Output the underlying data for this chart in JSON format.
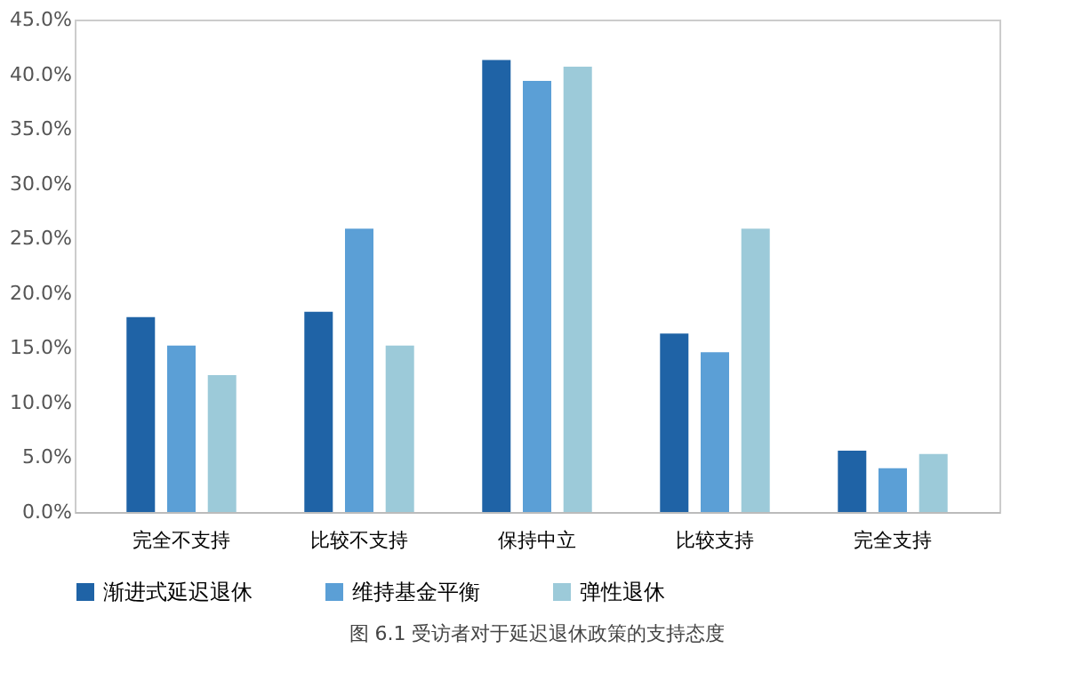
{
  "chart_data": {
    "type": "bar",
    "title": "图 6.1 受访者对于延迟退休政策的支持态度",
    "categories": [
      "完全不支持",
      "比较不支持",
      "保持中立",
      "比较支持",
      "完全支持"
    ],
    "series": [
      {
        "name": "渐进式延迟退休",
        "color": "#1f63a6",
        "values": [
          17.8,
          18.3,
          41.3,
          16.3,
          5.6
        ]
      },
      {
        "name": "维持基金平衡",
        "color": "#5b9fd6",
        "values": [
          15.2,
          25.9,
          39.4,
          14.6,
          4.0
        ]
      },
      {
        "name": "弹性退休",
        "color": "#9ccad9",
        "values": [
          12.5,
          15.2,
          40.7,
          25.9,
          5.3
        ]
      }
    ],
    "ylim": [
      0,
      45
    ],
    "yticks": [
      {
        "value": 0,
        "label": "0.0%"
      },
      {
        "value": 5,
        "label": "5.0%"
      },
      {
        "value": 10,
        "label": "10.0%"
      },
      {
        "value": 15,
        "label": "15.0%"
      },
      {
        "value": 20,
        "label": "20.0%"
      },
      {
        "value": 25,
        "label": "25.0%"
      },
      {
        "value": 30,
        "label": "30.0%"
      },
      {
        "value": 35,
        "label": "35.0%"
      },
      {
        "value": 40,
        "label": "40.0%"
      },
      {
        "value": 45,
        "label": "45.0%"
      }
    ],
    "grid": false,
    "legend": "bottom"
  }
}
